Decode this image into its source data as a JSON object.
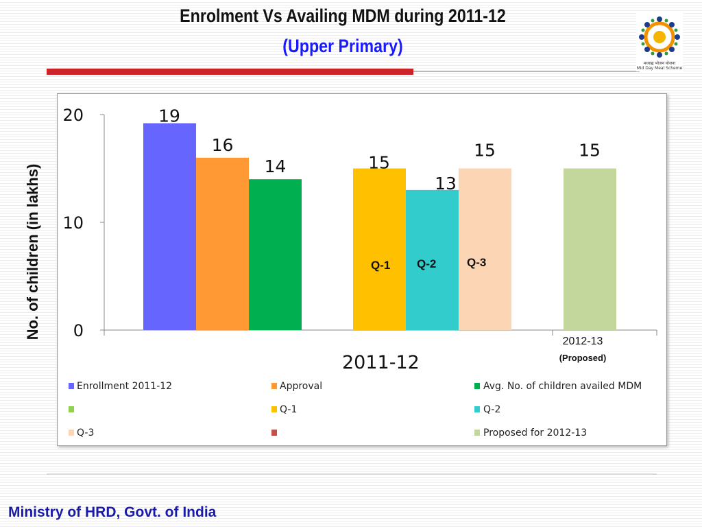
{
  "header": {
    "title": "Enrolment Vs Availing MDM during  2011-12",
    "subtitle": "(Upper Primary)"
  },
  "logo": {
    "line1": "मध्याह्न भोजन योजना",
    "line2": "Mid Day Meal Scheme"
  },
  "footer": {
    "text": "Ministry of HRD, Govt. of India"
  },
  "chart_data": {
    "type": "bar",
    "ylabel": "No. of children (in lakhs)",
    "ylim": [
      0,
      20
    ],
    "yticks": [
      "0",
      "10",
      "20"
    ],
    "categories": [
      "2011-12",
      "2012-13"
    ],
    "category_sub": {
      "2012-13": "(Proposed)"
    },
    "bars": [
      {
        "series": "Enrollment 2011-12",
        "category": "2011-12",
        "value": 19.2,
        "label": "19",
        "color": "#6666ff"
      },
      {
        "series": "Approval",
        "category": "2011-12",
        "value": 16,
        "label": "16",
        "color": "#ff9933"
      },
      {
        "series": "Avg. No. of children availed MDM",
        "category": "2011-12",
        "value": 14,
        "label": "14",
        "color": "#00b050"
      },
      {
        "series": "Q-1",
        "category": "2011-12",
        "value": 15,
        "label": "15",
        "color": "#ffc000"
      },
      {
        "series": "Q-2",
        "category": "2011-12",
        "value": 13,
        "label": "13",
        "color": "#33cccc"
      },
      {
        "series": "Q-3",
        "category": "2011-12",
        "value": 15,
        "label": "15",
        "color": "#fcd5b5"
      },
      {
        "series": "Proposed for 2012-13",
        "category": "2012-13",
        "value": 15,
        "label": "15",
        "color": "#c3d69b"
      }
    ],
    "in_bar_labels": [
      "Q-1",
      "Q-2",
      "Q-3"
    ],
    "legend": [
      {
        "name": "Enrollment 2011-12",
        "color": "#6666ff"
      },
      {
        "name": "Approval",
        "color": "#ff9933"
      },
      {
        "name": "Avg. No. of children availed MDM",
        "color": "#00b050"
      },
      {
        "name": "",
        "color": "#92d050"
      },
      {
        "name": "Q-1",
        "color": "#ffc000"
      },
      {
        "name": "Q-2",
        "color": "#33cccc"
      },
      {
        "name": "Q-3",
        "color": "#fcd5b5"
      },
      {
        "name": "",
        "color": "#c0504d"
      },
      {
        "name": "Proposed for 2012-13",
        "color": "#c3d69b"
      }
    ]
  }
}
